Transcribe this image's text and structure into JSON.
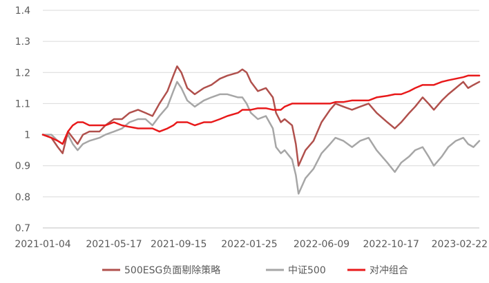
{
  "chart_data": {
    "type": "line",
    "title": "",
    "xlabel": "",
    "ylabel": "",
    "ylim": [
      0.7,
      1.4
    ],
    "y_ticks": [
      "0.7",
      "0.8",
      "0.9",
      "1",
      "1.1",
      "1.2",
      "1.3",
      "1.4"
    ],
    "x_ticks": [
      "2021-01-04",
      "2021-05-17",
      "2021-09-15",
      "2022-01-25",
      "2022-06-09",
      "2022-10-17",
      "2023-02-22"
    ],
    "x_range": [
      "2021-01-04",
      "2023-03-31"
    ],
    "grid": "horizontal",
    "legend_position": "bottom",
    "series": [
      {
        "name": "500ESG负面剔除策略",
        "color": "#b0504c",
        "points": [
          [
            "2021-01-04",
            1.0
          ],
          [
            "2021-01-20",
            0.99
          ],
          [
            "2021-02-01",
            0.96
          ],
          [
            "2021-02-10",
            0.94
          ],
          [
            "2021-02-20",
            1.01
          ],
          [
            "2021-03-01",
            0.99
          ],
          [
            "2021-03-10",
            0.97
          ],
          [
            "2021-03-20",
            1.0
          ],
          [
            "2021-04-01",
            1.01
          ],
          [
            "2021-04-20",
            1.01
          ],
          [
            "2021-05-01",
            1.03
          ],
          [
            "2021-05-17",
            1.05
          ],
          [
            "2021-06-01",
            1.05
          ],
          [
            "2021-06-15",
            1.07
          ],
          [
            "2021-07-01",
            1.08
          ],
          [
            "2021-07-15",
            1.07
          ],
          [
            "2021-07-28",
            1.06
          ],
          [
            "2021-08-10",
            1.1
          ],
          [
            "2021-08-25",
            1.14
          ],
          [
            "2021-09-05",
            1.19
          ],
          [
            "2021-09-12",
            1.22
          ],
          [
            "2021-09-20",
            1.2
          ],
          [
            "2021-10-01",
            1.15
          ],
          [
            "2021-10-15",
            1.13
          ],
          [
            "2021-11-01",
            1.15
          ],
          [
            "2021-11-15",
            1.16
          ],
          [
            "2021-12-01",
            1.18
          ],
          [
            "2021-12-15",
            1.19
          ],
          [
            "2022-01-04",
            1.2
          ],
          [
            "2022-01-12",
            1.21
          ],
          [
            "2022-01-20",
            1.2
          ],
          [
            "2022-01-28",
            1.17
          ],
          [
            "2022-02-10",
            1.14
          ],
          [
            "2022-02-25",
            1.15
          ],
          [
            "2022-03-10",
            1.12
          ],
          [
            "2022-03-16",
            1.07
          ],
          [
            "2022-03-25",
            1.04
          ],
          [
            "2022-04-01",
            1.05
          ],
          [
            "2022-04-15",
            1.03
          ],
          [
            "2022-04-22",
            0.97
          ],
          [
            "2022-04-27",
            0.9
          ],
          [
            "2022-05-10",
            0.95
          ],
          [
            "2022-05-25",
            0.98
          ],
          [
            "2022-06-09",
            1.04
          ],
          [
            "2022-06-25",
            1.08
          ],
          [
            "2022-07-05",
            1.1
          ],
          [
            "2022-07-20",
            1.09
          ],
          [
            "2022-08-05",
            1.08
          ],
          [
            "2022-08-20",
            1.09
          ],
          [
            "2022-09-05",
            1.1
          ],
          [
            "2022-09-20",
            1.07
          ],
          [
            "2022-10-10",
            1.04
          ],
          [
            "2022-10-24",
            1.02
          ],
          [
            "2022-11-05",
            1.04
          ],
          [
            "2022-11-20",
            1.07
          ],
          [
            "2022-12-01",
            1.09
          ],
          [
            "2022-12-15",
            1.12
          ],
          [
            "2022-12-26",
            1.1
          ],
          [
            "2023-01-05",
            1.08
          ],
          [
            "2023-01-20",
            1.11
          ],
          [
            "2023-02-01",
            1.13
          ],
          [
            "2023-02-15",
            1.15
          ],
          [
            "2023-03-01",
            1.17
          ],
          [
            "2023-03-10",
            1.15
          ],
          [
            "2023-03-20",
            1.16
          ],
          [
            "2023-03-31",
            1.17
          ]
        ]
      },
      {
        "name": "中证500",
        "color": "#a6a6a6",
        "points": [
          [
            "2021-01-04",
            1.0
          ],
          [
            "2021-01-20",
            1.0
          ],
          [
            "2021-02-01",
            0.98
          ],
          [
            "2021-02-10",
            0.97
          ],
          [
            "2021-02-20",
            1.0
          ],
          [
            "2021-03-01",
            0.97
          ],
          [
            "2021-03-10",
            0.95
          ],
          [
            "2021-03-20",
            0.97
          ],
          [
            "2021-04-01",
            0.98
          ],
          [
            "2021-04-20",
            0.99
          ],
          [
            "2021-05-01",
            1.0
          ],
          [
            "2021-05-17",
            1.01
          ],
          [
            "2021-06-01",
            1.02
          ],
          [
            "2021-06-15",
            1.04
          ],
          [
            "2021-07-01",
            1.05
          ],
          [
            "2021-07-15",
            1.05
          ],
          [
            "2021-07-28",
            1.03
          ],
          [
            "2021-08-10",
            1.06
          ],
          [
            "2021-08-25",
            1.09
          ],
          [
            "2021-09-05",
            1.14
          ],
          [
            "2021-09-12",
            1.17
          ],
          [
            "2021-09-20",
            1.15
          ],
          [
            "2021-10-01",
            1.11
          ],
          [
            "2021-10-15",
            1.09
          ],
          [
            "2021-11-01",
            1.11
          ],
          [
            "2021-11-15",
            1.12
          ],
          [
            "2021-12-01",
            1.13
          ],
          [
            "2021-12-15",
            1.13
          ],
          [
            "2022-01-04",
            1.12
          ],
          [
            "2022-01-12",
            1.12
          ],
          [
            "2022-01-20",
            1.1
          ],
          [
            "2022-01-28",
            1.07
          ],
          [
            "2022-02-10",
            1.05
          ],
          [
            "2022-02-25",
            1.06
          ],
          [
            "2022-03-10",
            1.02
          ],
          [
            "2022-03-16",
            0.96
          ],
          [
            "2022-03-25",
            0.94
          ],
          [
            "2022-04-01",
            0.95
          ],
          [
            "2022-04-15",
            0.92
          ],
          [
            "2022-04-22",
            0.87
          ],
          [
            "2022-04-27",
            0.81
          ],
          [
            "2022-05-10",
            0.86
          ],
          [
            "2022-05-25",
            0.89
          ],
          [
            "2022-06-09",
            0.94
          ],
          [
            "2022-06-25",
            0.97
          ],
          [
            "2022-07-05",
            0.99
          ],
          [
            "2022-07-20",
            0.98
          ],
          [
            "2022-08-05",
            0.96
          ],
          [
            "2022-08-20",
            0.98
          ],
          [
            "2022-09-05",
            0.99
          ],
          [
            "2022-09-20",
            0.95
          ],
          [
            "2022-10-10",
            0.91
          ],
          [
            "2022-10-24",
            0.88
          ],
          [
            "2022-11-05",
            0.91
          ],
          [
            "2022-11-20",
            0.93
          ],
          [
            "2022-12-01",
            0.95
          ],
          [
            "2022-12-15",
            0.96
          ],
          [
            "2022-12-26",
            0.93
          ],
          [
            "2023-01-05",
            0.9
          ],
          [
            "2023-01-20",
            0.93
          ],
          [
            "2023-02-01",
            0.96
          ],
          [
            "2023-02-15",
            0.98
          ],
          [
            "2023-03-01",
            0.99
          ],
          [
            "2023-03-10",
            0.97
          ],
          [
            "2023-03-20",
            0.96
          ],
          [
            "2023-03-31",
            0.98
          ]
        ]
      },
      {
        "name": "对冲组合",
        "color": "#e8191a",
        "points": [
          [
            "2021-01-04",
            1.0
          ],
          [
            "2021-01-20",
            0.99
          ],
          [
            "2021-02-01",
            0.98
          ],
          [
            "2021-02-10",
            0.97
          ],
          [
            "2021-02-20",
            1.01
          ],
          [
            "2021-03-01",
            1.03
          ],
          [
            "2021-03-10",
            1.04
          ],
          [
            "2021-03-20",
            1.04
          ],
          [
            "2021-04-01",
            1.03
          ],
          [
            "2021-04-20",
            1.03
          ],
          [
            "2021-05-01",
            1.03
          ],
          [
            "2021-05-17",
            1.04
          ],
          [
            "2021-06-01",
            1.03
          ],
          [
            "2021-06-15",
            1.025
          ],
          [
            "2021-07-01",
            1.02
          ],
          [
            "2021-07-15",
            1.02
          ],
          [
            "2021-07-28",
            1.02
          ],
          [
            "2021-08-10",
            1.01
          ],
          [
            "2021-08-25",
            1.02
          ],
          [
            "2021-09-05",
            1.03
          ],
          [
            "2021-09-12",
            1.04
          ],
          [
            "2021-09-20",
            1.04
          ],
          [
            "2021-10-01",
            1.04
          ],
          [
            "2021-10-15",
            1.03
          ],
          [
            "2021-11-01",
            1.04
          ],
          [
            "2021-11-15",
            1.04
          ],
          [
            "2021-12-01",
            1.05
          ],
          [
            "2021-12-15",
            1.06
          ],
          [
            "2022-01-04",
            1.07
          ],
          [
            "2022-01-12",
            1.08
          ],
          [
            "2022-01-20",
            1.08
          ],
          [
            "2022-01-28",
            1.08
          ],
          [
            "2022-02-10",
            1.085
          ],
          [
            "2022-02-25",
            1.085
          ],
          [
            "2022-03-10",
            1.08
          ],
          [
            "2022-03-16",
            1.08
          ],
          [
            "2022-03-25",
            1.08
          ],
          [
            "2022-04-01",
            1.09
          ],
          [
            "2022-04-15",
            1.1
          ],
          [
            "2022-04-22",
            1.1
          ],
          [
            "2022-04-27",
            1.1
          ],
          [
            "2022-05-10",
            1.1
          ],
          [
            "2022-05-25",
            1.1
          ],
          [
            "2022-06-09",
            1.1
          ],
          [
            "2022-06-25",
            1.1
          ],
          [
            "2022-07-05",
            1.105
          ],
          [
            "2022-07-20",
            1.105
          ],
          [
            "2022-08-05",
            1.11
          ],
          [
            "2022-08-20",
            1.11
          ],
          [
            "2022-09-05",
            1.11
          ],
          [
            "2022-09-20",
            1.12
          ],
          [
            "2022-10-10",
            1.125
          ],
          [
            "2022-10-24",
            1.13
          ],
          [
            "2022-11-05",
            1.13
          ],
          [
            "2022-11-20",
            1.14
          ],
          [
            "2022-12-01",
            1.15
          ],
          [
            "2022-12-15",
            1.16
          ],
          [
            "2022-12-26",
            1.16
          ],
          [
            "2023-01-05",
            1.16
          ],
          [
            "2023-01-20",
            1.17
          ],
          [
            "2023-02-01",
            1.175
          ],
          [
            "2023-02-15",
            1.18
          ],
          [
            "2023-03-01",
            1.185
          ],
          [
            "2023-03-10",
            1.19
          ],
          [
            "2023-03-20",
            1.19
          ],
          [
            "2023-03-31",
            1.19
          ]
        ]
      }
    ]
  }
}
